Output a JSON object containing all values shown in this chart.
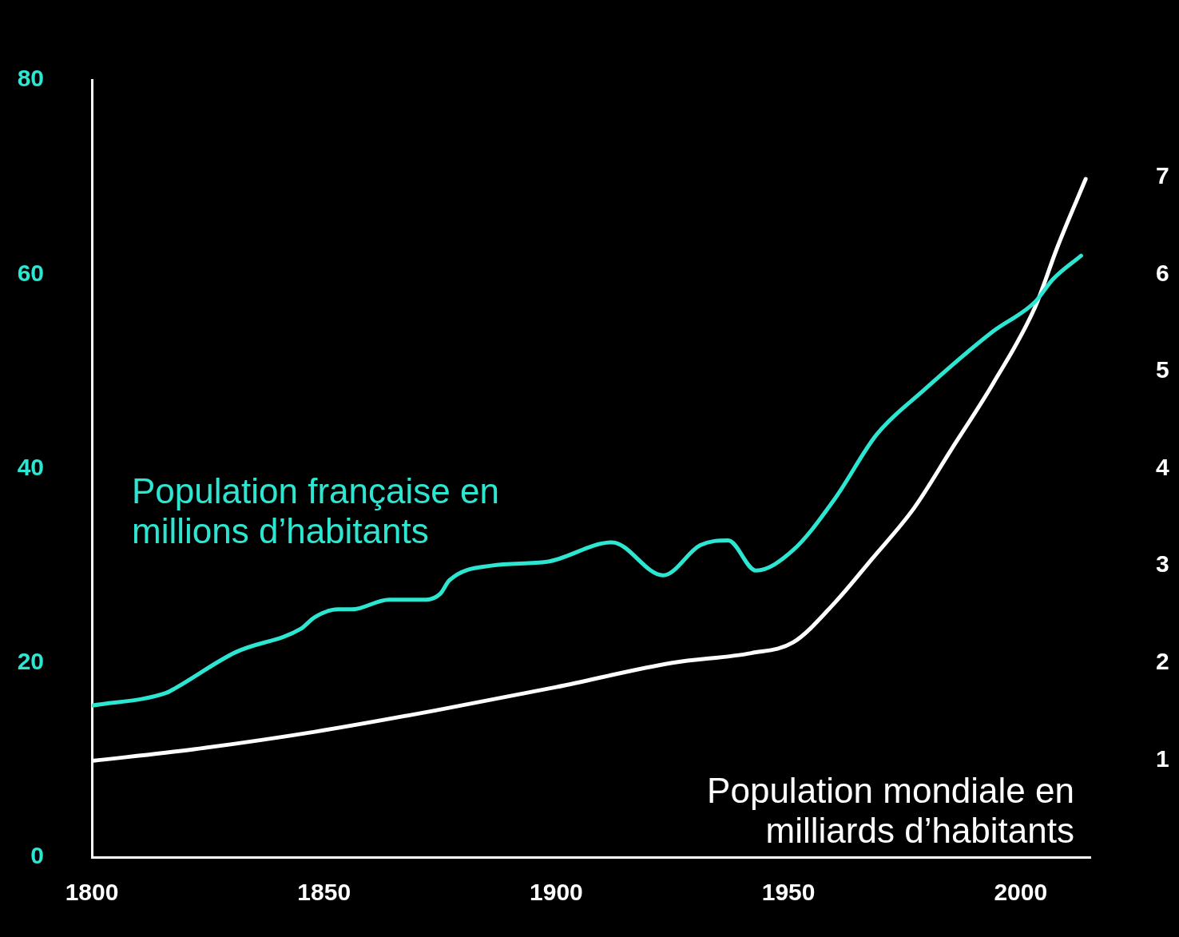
{
  "chart_data": {
    "type": "line",
    "x": [
      1800,
      1816,
      1818,
      1831,
      1845,
      1848,
      1853,
      1856,
      1864,
      1872,
      1875,
      1877,
      1886,
      1898,
      1912,
      1923,
      1931,
      1937,
      1943,
      1951,
      1960,
      1969,
      1979,
      1994,
      2003,
      2007,
      2013
    ],
    "series": [
      {
        "name": "Population française en millions d’habitants",
        "color": "#2de6d2",
        "values": [
          15.6,
          16.9,
          17.4,
          21.1,
          23.5,
          24.7,
          25.5,
          25.5,
          26.5,
          26.5,
          27.1,
          28.5,
          30.0,
          30.4,
          32.4,
          29.0,
          32.1,
          32.6,
          29.5,
          31.6,
          36.9,
          43.5,
          48.0,
          54.1,
          57.1,
          59.5,
          61.9
        ]
      },
      {
        "name": "Population mondiale en milliards d’habitants",
        "color": "#ffffff",
        "axis": "y2",
        "x": [
          1800,
          1822,
          1848,
          1874,
          1900,
          1925,
          1942,
          1951,
          1960,
          1968,
          1977,
          1985,
          1994,
          2003,
          2008,
          2014
        ],
        "values": [
          0.99,
          1.11,
          1.29,
          1.51,
          1.75,
          2.0,
          2.1,
          2.21,
          2.62,
          3.07,
          3.59,
          4.19,
          4.87,
          5.65,
          6.29,
          6.98
        ]
      }
    ],
    "xlim": [
      1800,
      2015
    ],
    "xticks": [
      1800,
      1850,
      1900,
      1950,
      2000
    ],
    "ylim": [
      0,
      80
    ],
    "yticks": [
      0,
      20,
      40,
      60,
      80
    ],
    "y2lim": [
      0,
      8
    ],
    "y2ticks": [
      1,
      2,
      3,
      4,
      5,
      6,
      7
    ],
    "grid": false,
    "legend": false,
    "marker": "none",
    "line_style": "solid"
  }
}
